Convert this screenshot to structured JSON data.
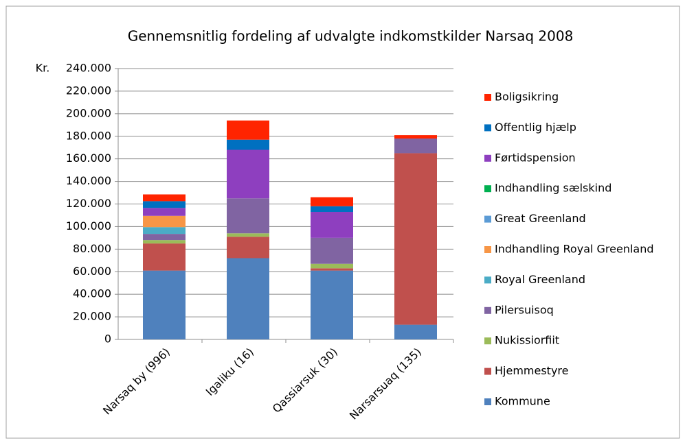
{
  "chart_data": {
    "type": "stacked_bar",
    "title": "Gennemsnitlig fordeling af udvalgte indkomstkilder Narsaq 2008",
    "y_label": "Kr.",
    "categories": [
      "Narsaq by (996)",
      "Igaliku (16)",
      "Qassiarsuk (30)",
      "Narsarsuaq (135)"
    ],
    "series": [
      {
        "name": "Kommune",
        "color": "#4f81bd",
        "values": [
          61000,
          72000,
          61000,
          13000
        ]
      },
      {
        "name": "Hjemmestyre",
        "color": "#c0504d",
        "values": [
          24000,
          19000,
          2000,
          152000
        ]
      },
      {
        "name": "Nukissiorfiit",
        "color": "#9bbb59",
        "values": [
          3000,
          3000,
          4000,
          0
        ]
      },
      {
        "name": "Pilersuisoq",
        "color": "#8064a2",
        "values": [
          5500,
          31000,
          23000,
          13000
        ]
      },
      {
        "name": "Royal Greenland",
        "color": "#4bacc6",
        "values": [
          6000,
          0,
          0,
          0
        ]
      },
      {
        "name": "Indhandling Royal Greenland",
        "color": "#f79646",
        "values": [
          10000,
          0,
          0,
          0
        ]
      },
      {
        "name": "Great Greenland",
        "color": "#5b9bd5",
        "values": [
          0,
          0,
          0,
          0
        ]
      },
      {
        "name": "Indhandling sælskind",
        "color": "#00b050",
        "values": [
          0,
          0,
          0,
          0
        ]
      },
      {
        "name": "Førtidspension",
        "color": "#8e3fbf",
        "values": [
          7000,
          43000,
          23000,
          0
        ]
      },
      {
        "name": "Offentlig hjælp",
        "color": "#0070c0",
        "values": [
          6000,
          9000,
          5000,
          0
        ]
      },
      {
        "name": "Boligsikring",
        "color": "#ff2400",
        "values": [
          6000,
          17000,
          8000,
          3000
        ]
      }
    ],
    "ylim": [
      0,
      240000
    ],
    "yticks": [
      0,
      {
        "value": 20000,
        "label": "20.000"
      },
      {
        "value": 40000,
        "label": "40.000"
      },
      {
        "value": 60000,
        "label": "60.000"
      },
      {
        "value": 80000,
        "label": "80.000"
      },
      {
        "value": 100000,
        "label": "100.000"
      },
      {
        "value": 120000,
        "label": "120.000"
      },
      {
        "value": 140000,
        "label": "140.000"
      },
      {
        "value": 160000,
        "label": "160.000"
      },
      {
        "value": 180000,
        "label": "180.000"
      },
      {
        "value": 200000,
        "label": "200.000"
      },
      {
        "value": 220000,
        "label": "220.000"
      },
      {
        "value": 240000,
        "label": "240.000"
      }
    ],
    "grid": true,
    "legend": "right"
  }
}
